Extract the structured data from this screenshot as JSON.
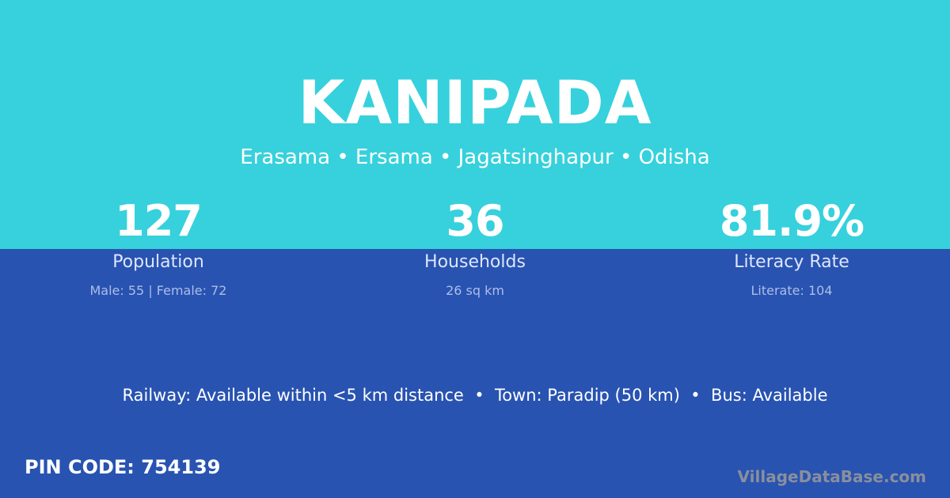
{
  "colors": {
    "top_background": "#36d1dc",
    "bottom_background": "#2853b1",
    "text": "#ffffff",
    "watermark": "#8a8f9c"
  },
  "village": {
    "name": "KANIPADA",
    "location": "Erasama • Ersama • Jagatsinghapur • Odisha"
  },
  "stats": [
    {
      "value": "127",
      "label": "Population",
      "detail": "Male: 55 | Female: 72"
    },
    {
      "value": "36",
      "label": "Households",
      "detail": "26 sq km"
    },
    {
      "value": "81.9%",
      "label": "Literacy Rate",
      "detail": "Literate: 104"
    }
  ],
  "transport": "Railway: Available within <5 km distance  •  Town: Paradip (50 km)  •  Bus: Available",
  "pin_code": "PIN CODE: 754139",
  "watermark": "VillageDataBase.com"
}
